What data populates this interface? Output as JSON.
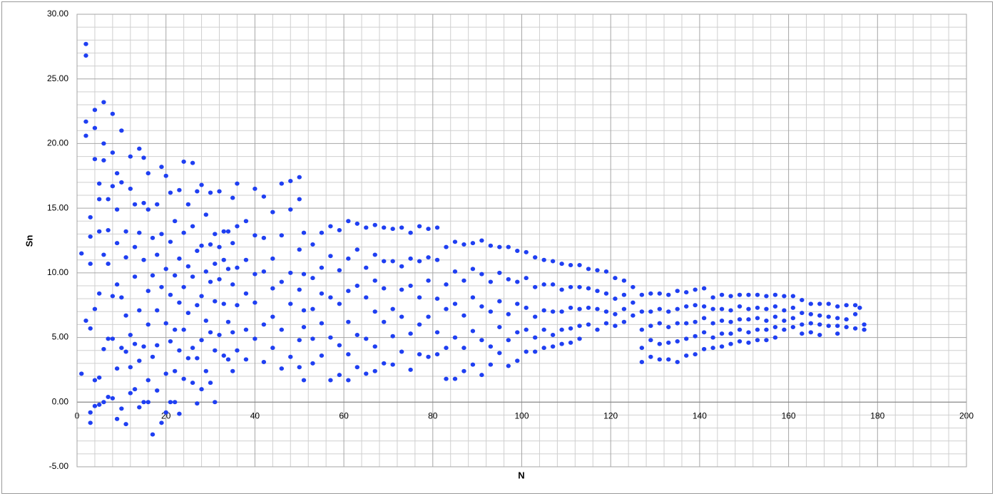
{
  "chart_data": {
    "type": "scatter",
    "x_label": "N",
    "y_label": "Sn",
    "color": "#1f3ff2",
    "grid": true,
    "minor_grid": true,
    "xlim": [
      0,
      200
    ],
    "xticks": [
      0,
      20,
      40,
      60,
      80,
      100,
      120,
      140,
      160,
      180,
      200
    ],
    "ylim": [
      -5,
      30
    ],
    "yticks": [
      {
        "value": -5,
        "label": "-5.00"
      },
      {
        "value": 0,
        "label": "0.00"
      },
      {
        "value": 5,
        "label": "5.00"
      },
      {
        "value": 10,
        "label": "10.00"
      },
      {
        "value": 15,
        "label": "15.00"
      },
      {
        "value": 20,
        "label": "20.00"
      },
      {
        "value": 25,
        "label": "25.00"
      },
      {
        "value": 30,
        "label": "30.00"
      }
    ],
    "x": [
      1,
      1,
      2,
      2,
      2,
      2,
      2,
      3,
      3,
      3,
      3,
      3,
      3,
      4,
      4,
      4,
      4,
      4,
      4,
      5,
      5,
      5,
      5,
      5,
      5,
      6,
      6,
      6,
      6,
      6,
      6,
      7,
      7,
      7,
      7,
      7,
      8,
      8,
      8,
      8,
      8,
      8,
      9,
      9,
      9,
      9,
      9,
      9,
      10,
      10,
      10,
      10,
      10,
      11,
      11,
      11,
      11,
      11,
      12,
      12,
      12,
      12,
      12,
      13,
      13,
      13,
      13,
      13,
      14,
      14,
      14,
      14,
      14,
      15,
      15,
      15,
      15,
      15,
      16,
      16,
      16,
      16,
      16,
      16,
      17,
      17,
      17,
      17,
      18,
      18,
      18,
      18,
      18,
      19,
      19,
      19,
      19,
      20,
      20,
      20,
      20,
      20,
      21,
      21,
      21,
      21,
      21,
      22,
      22,
      22,
      22,
      22,
      23,
      23,
      23,
      23,
      23,
      24,
      24,
      24,
      24,
      24,
      25,
      25,
      25,
      25,
      26,
      26,
      26,
      26,
      26,
      27,
      27,
      27,
      27,
      27,
      28,
      28,
      28,
      28,
      28,
      29,
      29,
      29,
      29,
      30,
      30,
      30,
      30,
      30,
      31,
      31,
      31,
      31,
      31,
      32,
      32,
      32,
      32,
      33,
      33,
      33,
      33,
      34,
      34,
      34,
      34,
      35,
      35,
      35,
      35,
      35,
      36,
      36,
      36,
      36,
      36,
      38,
      38,
      38,
      38,
      38,
      40,
      40,
      40,
      40,
      40,
      42,
      42,
      42,
      42,
      42,
      44,
      44,
      44,
      44,
      44,
      46,
      46,
      46,
      46,
      46,
      48,
      48,
      48,
      48,
      48,
      50,
      50,
      50,
      50,
      50,
      50,
      51,
      51,
      51,
      51,
      51,
      53,
      53,
      53,
      53,
      53,
      55,
      55,
      55,
      55,
      55,
      57,
      57,
      57,
      57,
      57,
      59,
      59,
      59,
      59,
      59,
      61,
      61,
      61,
      61,
      61,
      61,
      63,
      63,
      63,
      63,
      63,
      65,
      65,
      65,
      65,
      65,
      67,
      67,
      67,
      67,
      67,
      67,
      69,
      69,
      69,
      69,
      69,
      71,
      71,
      71,
      71,
      71,
      73,
      73,
      73,
      73,
      73,
      75,
      75,
      75,
      75,
      75,
      77,
      77,
      77,
      77,
      77,
      79,
      79,
      79,
      79,
      79,
      81,
      81,
      81,
      81,
      81,
      83,
      83,
      83,
      83,
      83,
      85,
      85,
      85,
      85,
      85,
      87,
      87,
      87,
      87,
      87,
      89,
      89,
      89,
      89,
      89,
      91,
      91,
      91,
      91,
      91,
      93,
      93,
      93,
      93,
      93,
      95,
      95,
      95,
      95,
      95,
      97,
      97,
      97,
      97,
      97,
      99,
      99,
      99,
      99,
      99,
      101,
      101,
      101,
      101,
      101,
      103,
      103,
      103,
      103,
      103,
      105,
      105,
      105,
      105,
      105,
      107,
      107,
      107,
      107,
      107,
      109,
      109,
      109,
      109,
      109,
      111,
      111,
      111,
      111,
      111,
      113,
      113,
      113,
      113,
      113,
      115,
      115,
      115,
      115,
      117,
      117,
      117,
      117,
      119,
      119,
      119,
      119,
      121,
      121,
      121,
      121,
      123,
      123,
      123,
      123,
      125,
      125,
      125,
      127,
      127,
      127,
      127,
      127,
      129,
      129,
      129,
      129,
      129,
      131,
      131,
      131,
      131,
      131,
      133,
      133,
      133,
      133,
      133,
      135,
      135,
      135,
      135,
      135,
      137,
      137,
      137,
      137,
      137,
      139,
      139,
      139,
      139,
      139,
      141,
      141,
      141,
      141,
      141,
      143,
      143,
      143,
      143,
      143,
      145,
      145,
      145,
      145,
      145,
      147,
      147,
      147,
      147,
      147,
      149,
      149,
      149,
      149,
      149,
      151,
      151,
      151,
      151,
      151,
      153,
      153,
      153,
      153,
      153,
      155,
      155,
      155,
      155,
      155,
      157,
      157,
      157,
      157,
      157,
      159,
      159,
      159,
      159,
      161,
      161,
      161,
      161,
      163,
      163,
      163,
      163,
      165,
      165,
      165,
      165,
      167,
      167,
      167,
      167,
      169,
      169,
      169,
      171,
      171,
      171,
      171,
      173,
      173,
      173,
      175,
      175,
      175,
      176,
      177,
      177
    ],
    "values": [
      2.2,
      11.5,
      27.7,
      26.8,
      21.7,
      20.6,
      6.3,
      14.3,
      12.8,
      10.7,
      5.7,
      -1.6,
      -0.8,
      22.6,
      21.2,
      18.8,
      7.2,
      1.7,
      -0.3,
      16.9,
      15.7,
      13.2,
      8.4,
      1.9,
      -0.2,
      23.2,
      20.0,
      18.7,
      11.4,
      4.1,
      0.0,
      15.7,
      13.3,
      10.7,
      4.9,
      0.4,
      22.3,
      19.3,
      16.7,
      8.2,
      4.9,
      0.3,
      17.7,
      14.9,
      12.3,
      9.1,
      2.6,
      -1.3,
      21.0,
      17.0,
      8.1,
      4.2,
      -0.5,
      13.2,
      11.2,
      6.7,
      3.9,
      -1.7,
      19.0,
      16.5,
      5.2,
      2.7,
      0.7,
      15.3,
      12.0,
      9.7,
      4.5,
      1.0,
      19.6,
      13.1,
      7.1,
      3.2,
      -0.4,
      18.9,
      15.4,
      11.0,
      4.3,
      0.0,
      17.7,
      14.9,
      8.6,
      6.0,
      1.7,
      0.0,
      12.7,
      9.8,
      3.5,
      -2.5,
      15.3,
      11.4,
      7.1,
      4.4,
      0.9,
      18.2,
      13.0,
      8.9,
      -1.6,
      17.5,
      10.3,
      6.1,
      2.2,
      -0.8,
      16.2,
      12.4,
      8.3,
      4.7,
      0.0,
      14.0,
      9.8,
      5.6,
      2.4,
      0.0,
      16.4,
      11.1,
      7.7,
      4.0,
      -0.9,
      18.6,
      13.1,
      8.9,
      5.6,
      1.8,
      15.3,
      10.5,
      6.9,
      3.4,
      18.5,
      13.6,
      9.7,
      4.2,
      1.5,
      16.3,
      11.7,
      7.5,
      3.4,
      -0.1,
      16.8,
      12.1,
      8.2,
      4.8,
      1.0,
      14.5,
      10.1,
      6.3,
      2.4,
      16.2,
      12.2,
      9.3,
      5.4,
      1.5,
      13.0,
      10.7,
      7.8,
      4.0,
      0.0,
      16.3,
      12.0,
      9.5,
      5.2,
      13.2,
      11.0,
      7.6,
      3.6,
      13.2,
      10.3,
      6.2,
      3.3,
      15.8,
      12.3,
      9.1,
      5.4,
      2.4,
      16.9,
      13.6,
      10.4,
      7.5,
      4.0,
      14.0,
      11.0,
      8.4,
      5.6,
      3.3,
      16.5,
      12.9,
      9.9,
      7.7,
      4.9,
      15.9,
      12.7,
      10.1,
      6.0,
      3.1,
      14.7,
      11.1,
      8.8,
      6.6,
      4.2,
      16.9,
      12.9,
      9.3,
      5.6,
      2.6,
      17.1,
      14.9,
      10.0,
      7.6,
      3.5,
      17.4,
      15.7,
      11.8,
      8.7,
      4.8,
      2.7,
      13.1,
      9.9,
      7.1,
      5.8,
      1.7,
      12.2,
      9.6,
      7.2,
      4.9,
      3.0,
      13.1,
      10.4,
      8.4,
      6.1,
      3.6,
      13.6,
      11.3,
      8.1,
      5.0,
      1.7,
      13.3,
      10.2,
      7.6,
      4.4,
      2.1,
      14.0,
      11.1,
      8.6,
      6.2,
      3.7,
      1.7,
      13.8,
      11.8,
      9.0,
      5.2,
      2.7,
      13.5,
      10.4,
      8.1,
      4.9,
      2.2,
      13.7,
      11.4,
      9.4,
      7.0,
      4.3,
      2.4,
      13.5,
      10.9,
      8.8,
      6.2,
      3.0,
      13.4,
      10.9,
      7.2,
      5.1,
      2.9,
      13.5,
      10.5,
      8.7,
      6.6,
      3.9,
      13.1,
      11.1,
      9.0,
      5.3,
      2.5,
      13.6,
      10.9,
      8.1,
      6.0,
      3.7,
      13.4,
      11.2,
      9.4,
      6.6,
      3.5,
      13.5,
      11.0,
      8.0,
      5.4,
      3.7,
      12.0,
      9.1,
      7.2,
      4.2,
      1.8,
      12.4,
      10.1,
      7.6,
      5.0,
      1.8,
      12.2,
      9.4,
      6.7,
      4.2,
      2.4,
      12.3,
      10.3,
      8.1,
      5.5,
      2.9,
      12.5,
      9.9,
      7.4,
      4.8,
      2.1,
      12.1,
      9.3,
      7.0,
      4.3,
      2.9,
      12.0,
      10.0,
      7.8,
      5.8,
      3.8,
      12.0,
      9.5,
      6.8,
      4.8,
      2.8,
      11.7,
      9.3,
      7.6,
      5.4,
      3.2,
      11.6,
      9.6,
      7.3,
      5.6,
      3.9,
      11.2,
      8.9,
      6.6,
      5.0,
      3.9,
      11.0,
      9.1,
      7.1,
      5.6,
      4.2,
      10.9,
      9.1,
      7.0,
      5.2,
      4.3,
      10.7,
      8.7,
      7.0,
      5.6,
      4.5,
      10.6,
      8.9,
      7.3,
      5.7,
      4.6,
      10.6,
      8.9,
      7.2,
      5.9,
      4.9,
      10.3,
      8.8,
      7.3,
      6.0,
      10.2,
      8.6,
      7.2,
      5.6,
      10.1,
      8.4,
      7.0,
      6.1,
      9.6,
      8.0,
      6.8,
      5.9,
      9.4,
      8.3,
      7.2,
      6.2,
      8.9,
      7.7,
      6.7,
      8.3,
      7.0,
      5.6,
      4.2,
      3.1,
      8.4,
      7.0,
      5.9,
      4.8,
      3.5,
      8.4,
      7.2,
      6.1,
      4.5,
      3.3,
      8.3,
      7.0,
      5.8,
      4.6,
      3.3,
      8.6,
      7.2,
      6.1,
      4.7,
      3.1,
      8.5,
      7.4,
      6.1,
      4.9,
      3.6,
      8.7,
      7.5,
      6.2,
      5.1,
      3.7,
      8.8,
      7.4,
      6.5,
      5.4,
      4.1,
      8.1,
      7.2,
      6.1,
      5.0,
      4.2,
      8.3,
      7.2,
      6.3,
      5.3,
      4.3,
      8.2,
      7.1,
      6.2,
      5.3,
      4.5,
      8.3,
      7.4,
      6.4,
      5.6,
      4.7,
      8.3,
      7.2,
      6.4,
      5.4,
      4.6,
      8.3,
      7.3,
      6.5,
      5.6,
      4.8,
      8.2,
      7.2,
      6.3,
      5.6,
      4.8,
      8.3,
      7.4,
      6.6,
      5.8,
      5.0,
      8.2,
      7.1,
      6.3,
      5.6,
      8.2,
      7.3,
      6.5,
      5.8,
      7.9,
      6.9,
      6.0,
      5.3,
      7.6,
      6.8,
      6.1,
      5.4,
      7.6,
      6.7,
      6.0,
      5.2,
      7.6,
      6.6,
      5.9,
      7.4,
      6.5,
      5.9,
      5.3,
      7.5,
      6.4,
      5.8,
      7.5,
      6.8,
      5.7,
      7.3,
      6.0,
      5.6
    ]
  }
}
